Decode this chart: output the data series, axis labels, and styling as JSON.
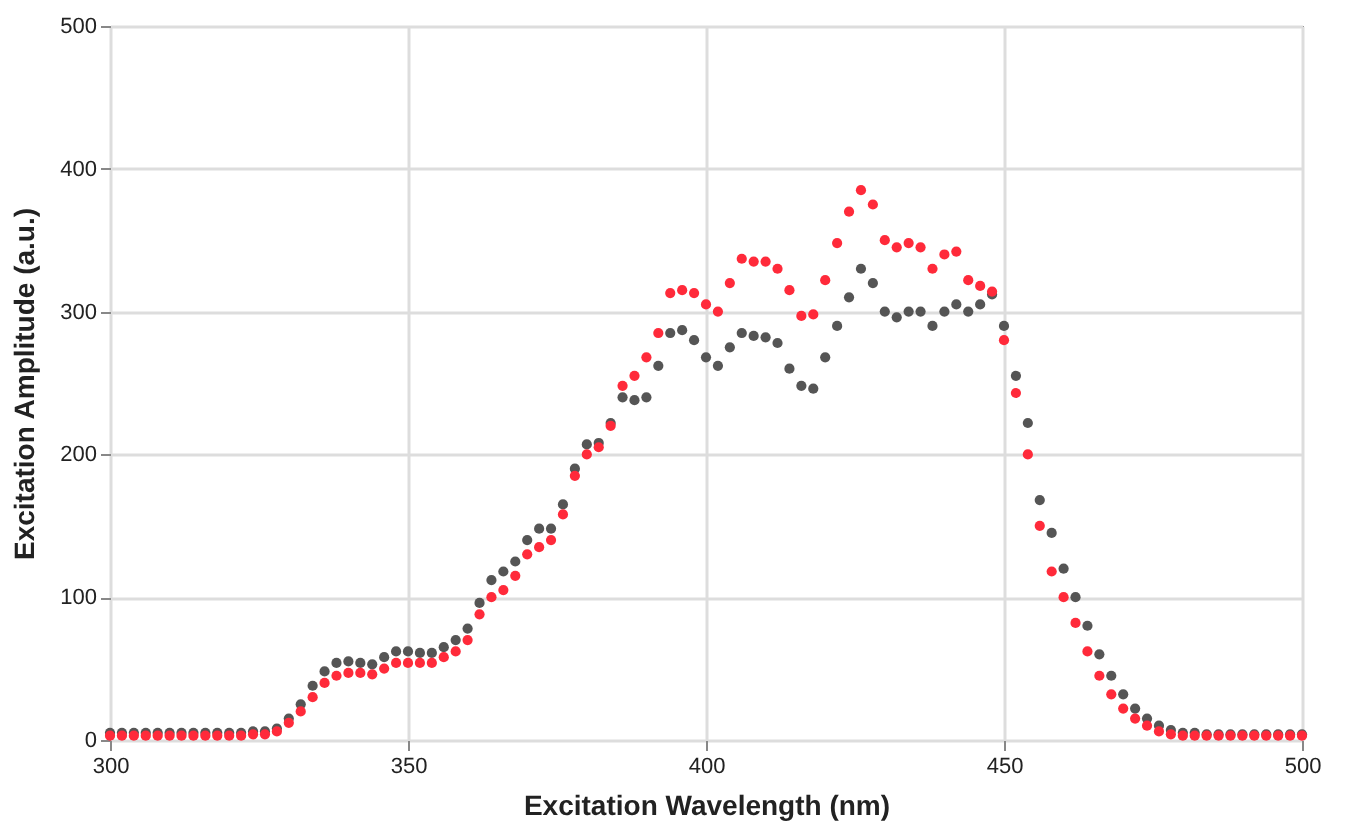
{
  "chart_data": {
    "type": "scatter",
    "xlabel": "Excitation Wavelength (nm)",
    "ylabel": "Excitation Amplitude (a.u.)",
    "x": [
      300,
      302,
      304,
      306,
      308,
      310,
      312,
      314,
      316,
      318,
      320,
      322,
      324,
      326,
      328,
      330,
      332,
      334,
      336,
      338,
      340,
      342,
      344,
      346,
      348,
      350,
      352,
      354,
      356,
      358,
      360,
      362,
      364,
      366,
      368,
      370,
      372,
      374,
      376,
      378,
      380,
      382,
      384,
      386,
      388,
      390,
      392,
      394,
      396,
      398,
      400,
      402,
      404,
      406,
      408,
      410,
      412,
      414,
      416,
      418,
      420,
      422,
      424,
      426,
      428,
      430,
      432,
      434,
      436,
      438,
      440,
      442,
      444,
      446,
      448,
      450,
      452,
      454,
      456,
      458,
      460,
      462,
      464,
      466,
      468,
      470,
      472,
      474,
      476,
      478,
      480,
      482,
      484,
      486,
      488,
      490,
      492,
      494,
      496,
      498,
      500
    ],
    "series": [
      {
        "color": "#ff2a3a",
        "values": [
          3,
          3,
          3,
          3,
          3,
          3,
          3,
          3,
          3,
          3,
          3,
          3,
          4,
          4,
          6,
          12,
          20,
          30,
          40,
          45,
          47,
          47,
          46,
          50,
          54,
          54,
          54,
          54,
          58,
          62,
          70,
          88,
          100,
          105,
          115,
          130,
          135,
          140,
          158,
          185,
          200,
          205,
          220,
          248,
          255,
          268,
          285,
          313,
          315,
          313,
          305,
          300,
          320,
          337,
          335,
          335,
          330,
          315,
          297,
          298,
          322,
          348,
          370,
          385,
          375,
          350,
          345,
          348,
          345,
          330,
          340,
          342,
          322,
          318,
          314,
          280,
          243,
          200,
          150,
          118,
          100,
          82,
          62,
          45,
          32,
          22,
          15,
          10,
          6,
          4,
          3,
          3,
          3,
          3,
          3,
          3,
          3,
          3,
          3,
          3,
          3
        ]
      },
      {
        "color": "#555555",
        "values": [
          5,
          5,
          5,
          5,
          5,
          5,
          5,
          5,
          5,
          5,
          5,
          5,
          6,
          6,
          8,
          15,
          25,
          38,
          48,
          54,
          55,
          54,
          53,
          58,
          62,
          62,
          61,
          61,
          65,
          70,
          78,
          96,
          112,
          118,
          125,
          140,
          148,
          148,
          165,
          190,
          207,
          208,
          222,
          240,
          238,
          240,
          262,
          285,
          287,
          280,
          268,
          262,
          275,
          285,
          283,
          282,
          278,
          260,
          248,
          246,
          268,
          290,
          310,
          330,
          320,
          300,
          296,
          300,
          300,
          290,
          300,
          305,
          300,
          305,
          312,
          290,
          255,
          222,
          168,
          145,
          120,
          100,
          80,
          60,
          45,
          32,
          22,
          15,
          10,
          7,
          5,
          5,
          4,
          4,
          4,
          4,
          4,
          4,
          4,
          4,
          4
        ]
      }
    ],
    "xlim": [
      300,
      500
    ],
    "xticks": [
      300,
      350,
      400,
      450,
      500
    ],
    "ylim": [
      0,
      500
    ],
    "yticks": [
      0,
      100,
      200,
      300,
      400,
      500
    ],
    "grid": true,
    "marker": "circle"
  }
}
